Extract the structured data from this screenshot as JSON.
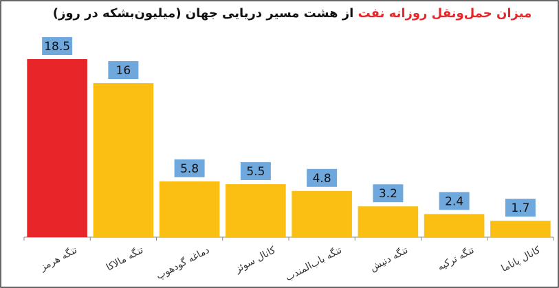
{
  "chart_data": {
    "type": "bar",
    "title_parts": [
      "میزان حمل‌ونقل روزانه نفت",
      "از هشت مسیر دریایی جهان (میلیون‌بشکه در روز)"
    ],
    "title_colors": [
      "#e8262a",
      "#111111"
    ],
    "categories": [
      "تنگه هرمز",
      "تنگه مالاکا",
      "دماغه گودهوپ",
      "کانال سوئز",
      "تنگه باب‌المندب",
      "تنگه دنیش",
      "تنگه ترکیه",
      "کانال پاناما"
    ],
    "values": [
      18.5,
      16,
      5.8,
      5.5,
      4.8,
      3.2,
      2.4,
      1.7
    ],
    "colors": [
      "#e8262a",
      "#fbbf14",
      "#fbbf14",
      "#fbbf14",
      "#fbbf14",
      "#fbbf14",
      "#fbbf14",
      "#fbbf14"
    ],
    "label_box_color": "#6fa8dc"
  }
}
